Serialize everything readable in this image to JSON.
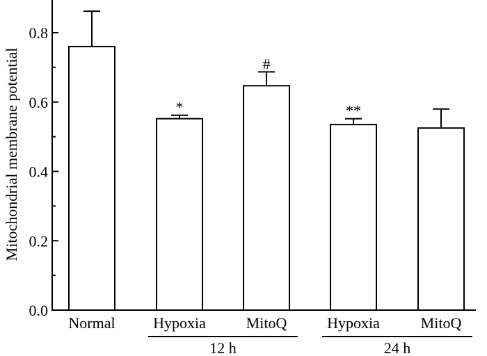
{
  "chart_data": {
    "type": "bar",
    "categories": [
      "Normal",
      "Hypoxia",
      "MitoQ",
      "Hypoxia",
      "MitoQ"
    ],
    "values": [
      0.76,
      0.552,
      0.647,
      0.535,
      0.525
    ],
    "errors": [
      0.102,
      0.01,
      0.04,
      0.017,
      0.055
    ],
    "annotations": [
      "",
      "*",
      "#",
      "**",
      ""
    ],
    "groups": [
      {
        "label": "12 h",
        "members": [
          1,
          2
        ]
      },
      {
        "label": "24 h",
        "members": [
          3,
          4
        ]
      }
    ],
    "ylabel": "Mitochondrial membrane potential",
    "xlabel": "",
    "title": "",
    "ylim": [
      0,
      0.88
    ],
    "yticks": [
      0.0,
      0.2,
      0.4,
      0.6,
      0.8
    ],
    "ytick_labels": [
      "0.0",
      "0.2",
      "0.4",
      "0.6",
      "0.8"
    ],
    "grid": false,
    "bar_fill": "#ffffff",
    "bar_stroke": "#000000"
  }
}
